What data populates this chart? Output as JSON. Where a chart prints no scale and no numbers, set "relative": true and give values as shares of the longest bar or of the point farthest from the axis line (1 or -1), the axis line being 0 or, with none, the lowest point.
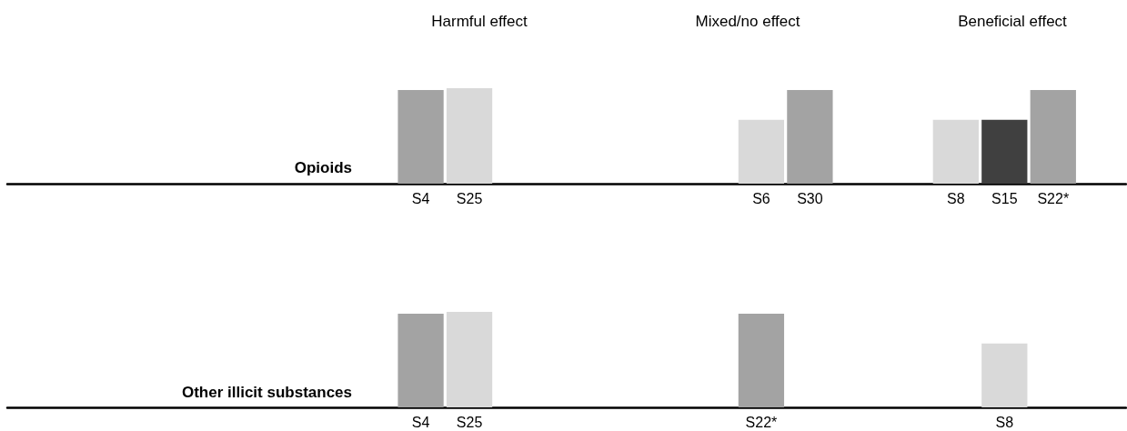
{
  "chart_data": [
    {
      "type": "bar",
      "relative": true,
      "ylabel": "Opioids",
      "annotations": [
        "Harmful effect",
        "Mixed/no effect",
        "Beneficial effect"
      ],
      "categories": [
        null,
        null,
        null,
        null,
        null,
        null,
        null,
        null,
        "S4",
        "S25",
        null,
        null,
        null,
        null,
        null,
        "S6",
        "S30",
        null,
        null,
        "S8",
        "S15",
        "S22*",
        null
      ],
      "values": [
        null,
        null,
        null,
        null,
        null,
        null,
        null,
        null,
        0.98,
        1,
        null,
        null,
        null,
        null,
        null,
        0.67,
        0.98,
        null,
        null,
        0.67,
        0.67,
        0.98,
        null
      ],
      "colors": [
        null,
        null,
        null,
        null,
        null,
        null,
        null,
        null,
        "#a3a3a3",
        "#d9d9d9",
        null,
        null,
        null,
        null,
        null,
        "#d9d9d9",
        "#a3a3a3",
        null,
        null,
        "#d9d9d9",
        "#404040",
        "#a3a3a3",
        null
      ]
    },
    {
      "type": "bar",
      "relative": true,
      "ylabel": "Other illicit substances",
      "categories": [
        null,
        null,
        null,
        null,
        null,
        null,
        null,
        null,
        "S4",
        "S25",
        null,
        null,
        null,
        null,
        null,
        "S22*",
        null,
        null,
        null,
        null,
        "S8",
        null,
        null
      ],
      "values": [
        null,
        null,
        null,
        null,
        null,
        null,
        null,
        null,
        0.98,
        1,
        null,
        null,
        null,
        null,
        null,
        0.98,
        null,
        null,
        null,
        null,
        0.67,
        null,
        null
      ],
      "colors": [
        null,
        null,
        null,
        null,
        null,
        null,
        null,
        null,
        "#a3a3a3",
        "#d9d9d9",
        null,
        null,
        null,
        null,
        null,
        "#a3a3a3",
        null,
        null,
        null,
        null,
        "#d9d9d9",
        null,
        null
      ]
    }
  ]
}
